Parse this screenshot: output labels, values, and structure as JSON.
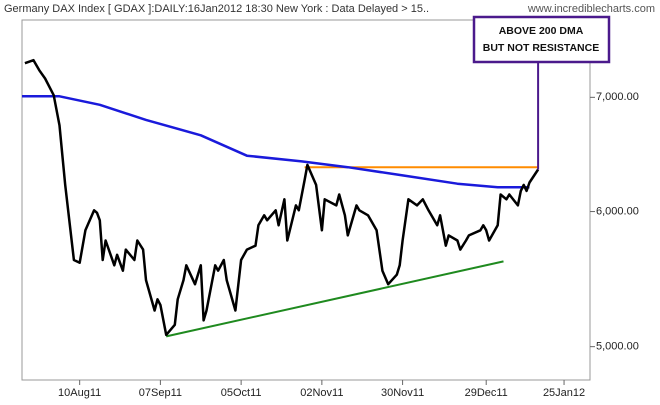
{
  "chart_data": {
    "type": "line",
    "title": "Germany DAX Index [ GDAX ]:DAILY:16Jan2012 18:30 New York : Data Delayed > 15..",
    "watermark": "www.incrediblecharts.com",
    "annotation": [
      "ABOVE 200 DMA",
      "BUT NOT RESISTANCE"
    ],
    "annotation_color": "#4b1a8c",
    "log_scale": true,
    "grid": false,
    "xlim": [
      "2011-07-21",
      "2012-02-03"
    ],
    "xticks": [
      {
        "value": "2011-08-10",
        "label": "10Aug11"
      },
      {
        "value": "2011-09-07",
        "label": "07Sep11"
      },
      {
        "value": "2011-10-05",
        "label": "05Oct11"
      },
      {
        "value": "2011-11-02",
        "label": "02Nov11"
      },
      {
        "value": "2011-11-30",
        "label": "30Nov11"
      },
      {
        "value": "2011-12-29",
        "label": "29Dec11"
      },
      {
        "value": "2012-01-25",
        "label": "25Jan12"
      }
    ],
    "ylim": [
      4780,
      7770
    ],
    "yticks": [
      {
        "value": 5000,
        "label": "5,000.00"
      },
      {
        "value": 6000,
        "label": "6,000.00"
      },
      {
        "value": 7000,
        "label": "7,000.00"
      }
    ],
    "series": [
      {
        "color": "#000000",
        "width": 2.5,
        "x": [
          "2011-07-22",
          "2011-07-25",
          "2011-07-27",
          "2011-07-29",
          "2011-08-01",
          "2011-08-03",
          "2011-08-04",
          "2011-08-05",
          "2011-08-08",
          "2011-08-10",
          "2011-08-12",
          "2011-08-15",
          "2011-08-16",
          "2011-08-17",
          "2011-08-18",
          "2011-08-19",
          "2011-08-22",
          "2011-08-23",
          "2011-08-25",
          "2011-08-26",
          "2011-08-29",
          "2011-08-30",
          "2011-09-01",
          "2011-09-02",
          "2011-09-05",
          "2011-09-06",
          "2011-09-07",
          "2011-09-09",
          "2011-09-12",
          "2011-09-13",
          "2011-09-15",
          "2011-09-16",
          "2011-09-19",
          "2011-09-21",
          "2011-09-22",
          "2011-09-23",
          "2011-09-26",
          "2011-09-27",
          "2011-09-29",
          "2011-09-30",
          "2011-10-03",
          "2011-10-05",
          "2011-10-07",
          "2011-10-10",
          "2011-10-11",
          "2011-10-13",
          "2011-10-14",
          "2011-10-17",
          "2011-10-18",
          "2011-10-20",
          "2011-10-21",
          "2011-10-24",
          "2011-10-25",
          "2011-10-27",
          "2011-10-28",
          "2011-10-31",
          "2011-11-02",
          "2011-11-03",
          "2011-11-07",
          "2011-11-08",
          "2011-11-10",
          "2011-11-11",
          "2011-11-14",
          "2011-11-15",
          "2011-11-18",
          "2011-11-21",
          "2011-11-23",
          "2011-11-25",
          "2011-11-28",
          "2011-11-29",
          "2011-11-30",
          "2011-12-02",
          "2011-12-05",
          "2011-12-07",
          "2011-12-09",
          "2011-12-12",
          "2011-12-13",
          "2011-12-15",
          "2011-12-16",
          "2011-12-19",
          "2011-12-20",
          "2011-12-22",
          "2011-12-23",
          "2011-12-27",
          "2011-12-28",
          "2011-12-29",
          "2011-12-30",
          "2012-01-02",
          "2012-01-03",
          "2012-01-05",
          "2012-01-06",
          "2012-01-09",
          "2012-01-10",
          "2012-01-11",
          "2012-01-12",
          "2012-01-13",
          "2012-01-16"
        ],
        "values": [
          7330,
          7360,
          7260,
          7180,
          7020,
          6740,
          6470,
          6220,
          5620,
          5600,
          5850,
          6010,
          5990,
          5930,
          5620,
          5770,
          5580,
          5660,
          5540,
          5700,
          5620,
          5770,
          5700,
          5470,
          5250,
          5330,
          5290,
          5080,
          5150,
          5330,
          5470,
          5580,
          5440,
          5580,
          5180,
          5250,
          5580,
          5540,
          5620,
          5470,
          5250,
          5620,
          5700,
          5730,
          5890,
          5970,
          5930,
          6010,
          5890,
          6100,
          5770,
          6050,
          6010,
          6260,
          6390,
          6220,
          5850,
          6100,
          6050,
          6140,
          5970,
          5810,
          6050,
          6010,
          5970,
          5850,
          5540,
          5440,
          5510,
          5580,
          5770,
          6100,
          6050,
          6100,
          6010,
          5890,
          5970,
          5730,
          5810,
          5770,
          5700,
          5770,
          5810,
          5850,
          5890,
          5850,
          5770,
          5890,
          6140,
          6100,
          6140,
          6050,
          6170,
          6220,
          6170,
          6240,
          6350
        ]
      },
      {
        "color": "#1a1adb",
        "width": 2.5,
        "x": [
          "2011-07-21",
          "2011-08-03",
          "2011-08-17",
          "2011-09-02",
          "2011-09-21",
          "2011-10-07",
          "2011-10-26",
          "2011-11-11",
          "2011-11-30",
          "2011-12-19",
          "2012-01-02",
          "2012-01-13"
        ],
        "values": [
          7010,
          7010,
          6930,
          6790,
          6650,
          6470,
          6420,
          6370,
          6300,
          6230,
          6200,
          6200
        ]
      },
      {
        "color": "#ff8c00",
        "width": 2,
        "x": [
          "2011-10-27",
          "2012-01-16"
        ],
        "values": [
          6370,
          6370
        ]
      },
      {
        "color": "#1f8a1f",
        "width": 2,
        "x": [
          "2011-09-09",
          "2012-01-04"
        ],
        "values": [
          5070,
          5610
        ]
      }
    ]
  }
}
